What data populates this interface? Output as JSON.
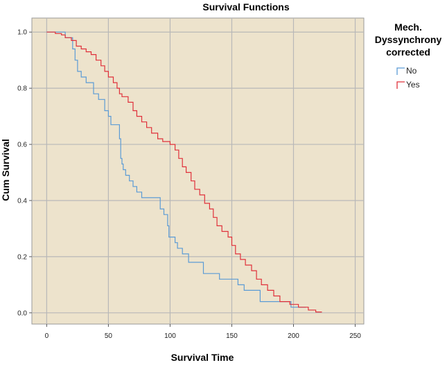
{
  "chart_data": {
    "type": "line",
    "title": "Survival Functions",
    "xlabel": "Survival Time",
    "ylabel": "Cum Survival",
    "xlim": [
      -12,
      257
    ],
    "ylim": [
      -0.04,
      1.05
    ],
    "x_ticks": [
      0,
      50,
      100,
      150,
      200,
      250
    ],
    "x_tick_labels": [
      "0",
      "50",
      "100",
      "150",
      "200",
      "250"
    ],
    "y_ticks": [
      0.0,
      0.2,
      0.4,
      0.6,
      0.8,
      1.0
    ],
    "y_tick_labels": [
      "0.0",
      "0.2",
      "0.4",
      "0.6",
      "0.8",
      "1.0"
    ],
    "grid": true,
    "plot_background": "#ede3cc",
    "grid_color": "#b8b8b8",
    "legend": {
      "title_lines": [
        "Mech.",
        "Dyssynchrony",
        "corrected"
      ],
      "position": "right"
    },
    "series": [
      {
        "name": "No",
        "color": "#5b9bd5",
        "step": true,
        "points": [
          [
            0,
            1.0
          ],
          [
            15,
            1.0
          ],
          [
            15,
            0.98
          ],
          [
            21,
            0.98
          ],
          [
            21,
            0.94
          ],
          [
            23,
            0.94
          ],
          [
            23,
            0.9
          ],
          [
            25,
            0.9
          ],
          [
            25,
            0.86
          ],
          [
            28,
            0.86
          ],
          [
            28,
            0.84
          ],
          [
            32,
            0.84
          ],
          [
            32,
            0.82
          ],
          [
            38,
            0.82
          ],
          [
            38,
            0.78
          ],
          [
            42,
            0.78
          ],
          [
            42,
            0.76
          ],
          [
            47,
            0.76
          ],
          [
            47,
            0.72
          ],
          [
            50,
            0.72
          ],
          [
            50,
            0.7
          ],
          [
            52,
            0.7
          ],
          [
            52,
            0.67
          ],
          [
            59,
            0.67
          ],
          [
            59,
            0.62
          ],
          [
            60,
            0.62
          ],
          [
            60,
            0.55
          ],
          [
            61,
            0.55
          ],
          [
            61,
            0.53
          ],
          [
            62,
            0.53
          ],
          [
            62,
            0.51
          ],
          [
            64,
            0.51
          ],
          [
            64,
            0.49
          ],
          [
            67,
            0.49
          ],
          [
            67,
            0.47
          ],
          [
            70,
            0.47
          ],
          [
            70,
            0.45
          ],
          [
            73,
            0.45
          ],
          [
            73,
            0.43
          ],
          [
            77,
            0.43
          ],
          [
            77,
            0.41
          ],
          [
            92,
            0.41
          ],
          [
            92,
            0.37
          ],
          [
            95,
            0.37
          ],
          [
            95,
            0.35
          ],
          [
            98,
            0.35
          ],
          [
            98,
            0.31
          ],
          [
            99,
            0.31
          ],
          [
            99,
            0.27
          ],
          [
            104,
            0.27
          ],
          [
            104,
            0.25
          ],
          [
            106,
            0.25
          ],
          [
            106,
            0.23
          ],
          [
            110,
            0.23
          ],
          [
            110,
            0.21
          ],
          [
            115,
            0.21
          ],
          [
            115,
            0.18
          ],
          [
            127,
            0.18
          ],
          [
            127,
            0.14
          ],
          [
            140,
            0.14
          ],
          [
            140,
            0.12
          ],
          [
            155,
            0.12
          ],
          [
            155,
            0.1
          ],
          [
            160,
            0.1
          ],
          [
            160,
            0.08
          ],
          [
            173,
            0.08
          ],
          [
            173,
            0.04
          ],
          [
            198,
            0.04
          ],
          [
            198,
            0.02
          ],
          [
            210,
            0.02
          ]
        ]
      },
      {
        "name": "Yes",
        "color": "#e0303a",
        "step": true,
        "points": [
          [
            0,
            1.0
          ],
          [
            7,
            1.0
          ],
          [
            7,
            0.995
          ],
          [
            12,
            0.995
          ],
          [
            12,
            0.99
          ],
          [
            15,
            0.99
          ],
          [
            15,
            0.98
          ],
          [
            20,
            0.98
          ],
          [
            20,
            0.97
          ],
          [
            24,
            0.97
          ],
          [
            24,
            0.95
          ],
          [
            28,
            0.95
          ],
          [
            28,
            0.94
          ],
          [
            32,
            0.94
          ],
          [
            32,
            0.93
          ],
          [
            36,
            0.93
          ],
          [
            36,
            0.92
          ],
          [
            40,
            0.92
          ],
          [
            40,
            0.9
          ],
          [
            44,
            0.9
          ],
          [
            44,
            0.88
          ],
          [
            47,
            0.88
          ],
          [
            47,
            0.86
          ],
          [
            50,
            0.86
          ],
          [
            50,
            0.84
          ],
          [
            54,
            0.84
          ],
          [
            54,
            0.82
          ],
          [
            57,
            0.82
          ],
          [
            57,
            0.8
          ],
          [
            59,
            0.8
          ],
          [
            59,
            0.78
          ],
          [
            61,
            0.78
          ],
          [
            61,
            0.77
          ],
          [
            66,
            0.77
          ],
          [
            66,
            0.75
          ],
          [
            70,
            0.75
          ],
          [
            70,
            0.72
          ],
          [
            73,
            0.72
          ],
          [
            73,
            0.7
          ],
          [
            77,
            0.7
          ],
          [
            77,
            0.68
          ],
          [
            81,
            0.68
          ],
          [
            81,
            0.66
          ],
          [
            85,
            0.66
          ],
          [
            85,
            0.64
          ],
          [
            90,
            0.64
          ],
          [
            90,
            0.62
          ],
          [
            94,
            0.62
          ],
          [
            94,
            0.61
          ],
          [
            100,
            0.61
          ],
          [
            100,
            0.6
          ],
          [
            104,
            0.6
          ],
          [
            104,
            0.58
          ],
          [
            107,
            0.58
          ],
          [
            107,
            0.55
          ],
          [
            110,
            0.55
          ],
          [
            110,
            0.52
          ],
          [
            113,
            0.52
          ],
          [
            113,
            0.5
          ],
          [
            117,
            0.5
          ],
          [
            117,
            0.47
          ],
          [
            120,
            0.47
          ],
          [
            120,
            0.44
          ],
          [
            124,
            0.44
          ],
          [
            124,
            0.42
          ],
          [
            128,
            0.42
          ],
          [
            128,
            0.39
          ],
          [
            132,
            0.39
          ],
          [
            132,
            0.37
          ],
          [
            135,
            0.37
          ],
          [
            135,
            0.34
          ],
          [
            138,
            0.34
          ],
          [
            138,
            0.31
          ],
          [
            142,
            0.31
          ],
          [
            142,
            0.29
          ],
          [
            147,
            0.29
          ],
          [
            147,
            0.27
          ],
          [
            150,
            0.27
          ],
          [
            150,
            0.24
          ],
          [
            153,
            0.24
          ],
          [
            153,
            0.21
          ],
          [
            157,
            0.21
          ],
          [
            157,
            0.19
          ],
          [
            161,
            0.19
          ],
          [
            161,
            0.17
          ],
          [
            166,
            0.17
          ],
          [
            166,
            0.15
          ],
          [
            170,
            0.15
          ],
          [
            170,
            0.12
          ],
          [
            174,
            0.12
          ],
          [
            174,
            0.1
          ],
          [
            179,
            0.1
          ],
          [
            179,
            0.08
          ],
          [
            184,
            0.08
          ],
          [
            184,
            0.06
          ],
          [
            189,
            0.06
          ],
          [
            189,
            0.04
          ],
          [
            197,
            0.04
          ],
          [
            197,
            0.03
          ],
          [
            204,
            0.03
          ],
          [
            204,
            0.02
          ],
          [
            212,
            0.02
          ],
          [
            212,
            0.01
          ],
          [
            218,
            0.01
          ],
          [
            218,
            0.003
          ],
          [
            223,
            0.003
          ]
        ]
      }
    ]
  }
}
